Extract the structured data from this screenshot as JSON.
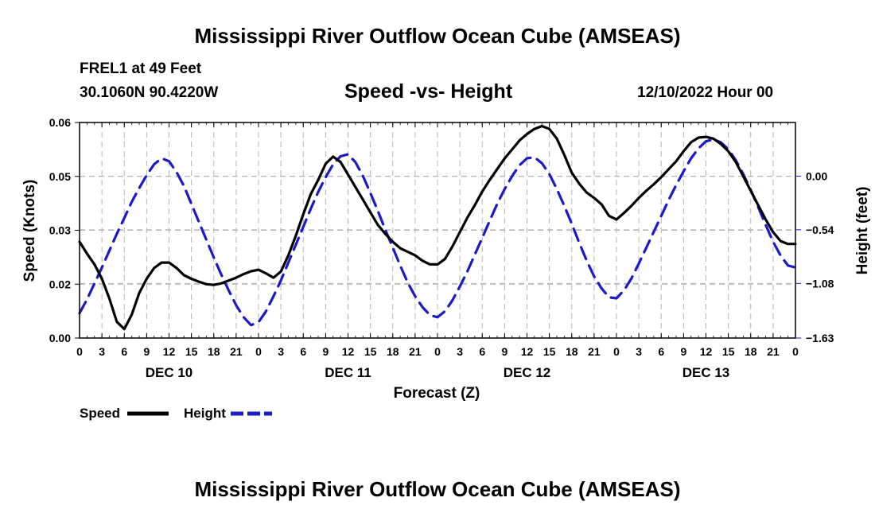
{
  "page": {
    "title": "Mississippi River Outflow Ocean Cube (AMSEAS)",
    "station": "FREL1 at 49 Feet",
    "coords": "30.1060N  90.4220W",
    "subtitle": "Speed -vs- Height",
    "datetime": "12/10/2022 Hour 00",
    "footer_title": "Mississippi River Outflow Ocean Cube (AMSEAS)"
  },
  "chart_data": {
    "type": "line",
    "title": "Speed -vs- Height",
    "xlabel": "Forecast (Z)",
    "ylabel": "Speed (Knots)",
    "y2label": "Height (feet)",
    "x_range_hours": [
      0,
      96
    ],
    "ylim": [
      0,
      0.06
    ],
    "y2lim": [
      -1.63,
      0.54
    ],
    "y_ticks": [
      "0.00",
      "0.02",
      "0.03",
      "0.05",
      "0.06"
    ],
    "y_tick_values": [
      0,
      0.015,
      0.03,
      0.045,
      0.06
    ],
    "y2_ticks": [
      "0.00",
      "−0.54",
      "−1.08",
      "−1.63"
    ],
    "y2_tick_values": [
      0,
      -0.54,
      -1.08,
      -1.63
    ],
    "x_tick_labels": [
      "0",
      "3",
      "6",
      "9",
      "12",
      "15",
      "18",
      "21",
      "0",
      "3",
      "6",
      "9",
      "12",
      "15",
      "18",
      "21",
      "0",
      "3",
      "6",
      "9",
      "12",
      "15",
      "18",
      "21",
      "0",
      "3",
      "6",
      "9",
      "12",
      "15",
      "18",
      "21",
      "0"
    ],
    "x_tick_hours": [
      0,
      3,
      6,
      9,
      12,
      15,
      18,
      21,
      24,
      27,
      30,
      33,
      36,
      39,
      42,
      45,
      48,
      51,
      54,
      57,
      60,
      63,
      66,
      69,
      72,
      75,
      78,
      81,
      84,
      87,
      90,
      93,
      96
    ],
    "day_labels": [
      "DEC 10",
      "DEC 11",
      "DEC 12",
      "DEC 13"
    ],
    "day_label_hours": [
      12,
      36,
      60,
      84
    ],
    "grid": true,
    "series": [
      {
        "name": "Speed",
        "axis": "left",
        "color": "#000000",
        "dash": "solid",
        "x": [
          0,
          1,
          2,
          3,
          4,
          5,
          6,
          7,
          8,
          9,
          10,
          11,
          12,
          13,
          14,
          15,
          16,
          17,
          18,
          19,
          20,
          21,
          22,
          23,
          24,
          25,
          26,
          27,
          28,
          29,
          30,
          31,
          32,
          33,
          34,
          35,
          36,
          37,
          38,
          39,
          40,
          41,
          42,
          43,
          44,
          45,
          46,
          47,
          48,
          49,
          50,
          51,
          52,
          53,
          54,
          55,
          56,
          57,
          58,
          59,
          60,
          61,
          62,
          63,
          64,
          65,
          66,
          67,
          68,
          69,
          70,
          71,
          72,
          73,
          74,
          75,
          76,
          77,
          78,
          79,
          80,
          81,
          82,
          83,
          84,
          85,
          86,
          87,
          88,
          89,
          90,
          91,
          92,
          93,
          94,
          95,
          96
        ],
        "values": [
          0.0268,
          0.0235,
          0.0205,
          0.0165,
          0.011,
          0.0045,
          0.0025,
          0.0065,
          0.0125,
          0.0165,
          0.0195,
          0.021,
          0.021,
          0.0195,
          0.0175,
          0.0165,
          0.0157,
          0.015,
          0.0148,
          0.0152,
          0.016,
          0.0168,
          0.0178,
          0.0186,
          0.019,
          0.018,
          0.0168,
          0.0185,
          0.023,
          0.0285,
          0.0345,
          0.04,
          0.044,
          0.0485,
          0.0505,
          0.049,
          0.0455,
          0.042,
          0.0385,
          0.035,
          0.0315,
          0.029,
          0.0268,
          0.025,
          0.024,
          0.023,
          0.0215,
          0.0205,
          0.0205,
          0.022,
          0.0255,
          0.0295,
          0.0335,
          0.037,
          0.0408,
          0.044,
          0.047,
          0.05,
          0.0525,
          0.055,
          0.0568,
          0.0582,
          0.059,
          0.0582,
          0.0555,
          0.051,
          0.046,
          0.043,
          0.0405,
          0.039,
          0.0372,
          0.034,
          0.033,
          0.0348,
          0.0368,
          0.039,
          0.041,
          0.0428,
          0.0448,
          0.047,
          0.0492,
          0.052,
          0.0545,
          0.0558,
          0.056,
          0.0555,
          0.054,
          0.052,
          0.049,
          0.045,
          0.041,
          0.037,
          0.033,
          0.0295,
          0.027,
          0.0262,
          0.0262
        ]
      },
      {
        "name": "Height",
        "axis": "right",
        "color": "#1a1ac8",
        "dash": "dashed",
        "x": [
          0,
          1,
          2,
          3,
          4,
          5,
          6,
          7,
          8,
          9,
          10,
          11,
          12,
          13,
          14,
          15,
          16,
          17,
          18,
          19,
          20,
          21,
          22,
          23,
          24,
          25,
          26,
          27,
          28,
          29,
          30,
          31,
          32,
          33,
          34,
          35,
          36,
          37,
          38,
          39,
          40,
          41,
          42,
          43,
          44,
          45,
          46,
          47,
          48,
          49,
          50,
          51,
          52,
          53,
          54,
          55,
          56,
          57,
          58,
          59,
          60,
          61,
          62,
          63,
          64,
          65,
          66,
          67,
          68,
          69,
          70,
          71,
          72,
          73,
          74,
          75,
          76,
          77,
          78,
          79,
          80,
          81,
          82,
          83,
          84,
          85,
          86,
          87,
          88,
          89,
          90,
          91,
          92,
          93,
          94,
          95,
          96
        ],
        "values": [
          -1.38,
          -1.24,
          -1.08,
          -0.92,
          -0.75,
          -0.58,
          -0.42,
          -0.26,
          -0.12,
          0.01,
          0.12,
          0.18,
          0.15,
          0.04,
          -0.1,
          -0.28,
          -0.46,
          -0.64,
          -0.82,
          -0.99,
          -1.15,
          -1.3,
          -1.42,
          -1.5,
          -1.47,
          -1.36,
          -1.21,
          -1.05,
          -0.87,
          -0.69,
          -0.51,
          -0.33,
          -0.16,
          -0.01,
          0.12,
          0.2,
          0.22,
          0.14,
          0.0,
          -0.17,
          -0.35,
          -0.54,
          -0.72,
          -0.9,
          -1.07,
          -1.21,
          -1.32,
          -1.4,
          -1.42,
          -1.36,
          -1.25,
          -1.11,
          -0.96,
          -0.79,
          -0.62,
          -0.45,
          -0.28,
          -0.13,
          0.0,
          0.11,
          0.18,
          0.19,
          0.13,
          0.02,
          -0.13,
          -0.3,
          -0.48,
          -0.67,
          -0.85,
          -1.01,
          -1.13,
          -1.22,
          -1.23,
          -1.15,
          -1.03,
          -0.88,
          -0.72,
          -0.56,
          -0.4,
          -0.24,
          -0.09,
          0.05,
          0.18,
          0.28,
          0.35,
          0.37,
          0.34,
          0.27,
          0.16,
          0.02,
          -0.14,
          -0.31,
          -0.49,
          -0.66,
          -0.8,
          -0.9,
          -0.92
        ]
      }
    ],
    "legend": [
      {
        "label": "Speed",
        "color": "#000000",
        "dash": "solid"
      },
      {
        "label": "Height",
        "color": "#1a1ac8",
        "dash": "dashed"
      }
    ],
    "legend_position": "bottom-left"
  }
}
